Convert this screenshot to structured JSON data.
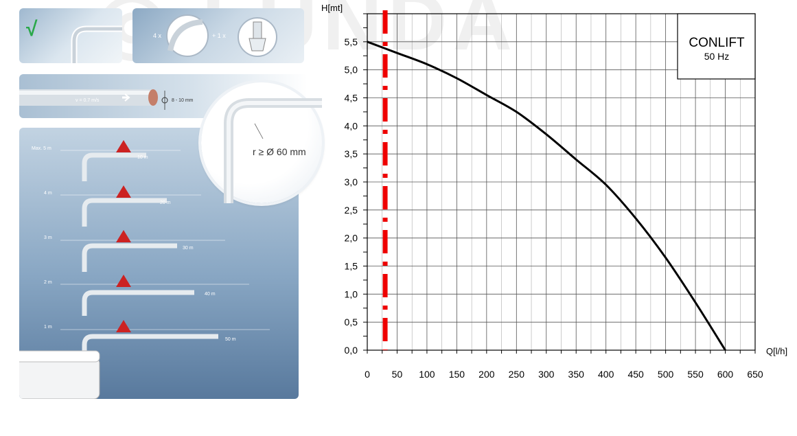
{
  "left": {
    "check_mark": "√",
    "fitting_count_bends": "4 x",
    "fitting_count_adapter": "+ 1 x",
    "velocity_label": "v = 0.7 m/s",
    "diameter_label": "8 - 10 mm",
    "radius_label": "r ≥ Ø 60 mm",
    "levels": [
      {
        "height": "Max. 5 m",
        "length": "10 m"
      },
      {
        "height": "4 m",
        "length": "20 m"
      },
      {
        "height": "3 m",
        "length": "30 m"
      },
      {
        "height": "2 m",
        "length": "40 m"
      },
      {
        "height": "1 m",
        "length": "50 m"
      }
    ]
  },
  "legend": {
    "title": "CONLIFT",
    "subtitle": "50 Hz"
  },
  "colors": {
    "curve": "#000000",
    "marker": "#ee0000",
    "grid": "#555555",
    "axis": "#000000"
  },
  "chart_data": {
    "type": "line",
    "title": "",
    "xlabel": "Q[l/h]",
    "ylabel": "H[mt]",
    "xlim": [
      0,
      650
    ],
    "ylim": [
      0,
      6.0
    ],
    "x_ticks": [
      "0",
      "50",
      "100",
      "150",
      "200",
      "250",
      "300",
      "350",
      "400",
      "450",
      "500",
      "550",
      "600",
      "650"
    ],
    "y_ticks": [
      "0,0",
      "0,5",
      "1,0",
      "1,5",
      "2,0",
      "2,5",
      "3,0",
      "3,5",
      "4,0",
      "4,5",
      "5,0",
      "5,5"
    ],
    "grid": true,
    "legend_position": "top-right",
    "series": [
      {
        "name": "CONLIFT 50 Hz",
        "x": [
          0,
          50,
          100,
          150,
          200,
          250,
          300,
          350,
          400,
          450,
          500,
          550,
          600
        ],
        "y": [
          5.5,
          5.3,
          5.1,
          4.85,
          4.55,
          4.25,
          3.85,
          3.4,
          2.95,
          2.35,
          1.65,
          0.85,
          0.0
        ]
      }
    ],
    "reference_line": {
      "x": 30,
      "style": "dashed",
      "color": "#ee0000"
    }
  }
}
